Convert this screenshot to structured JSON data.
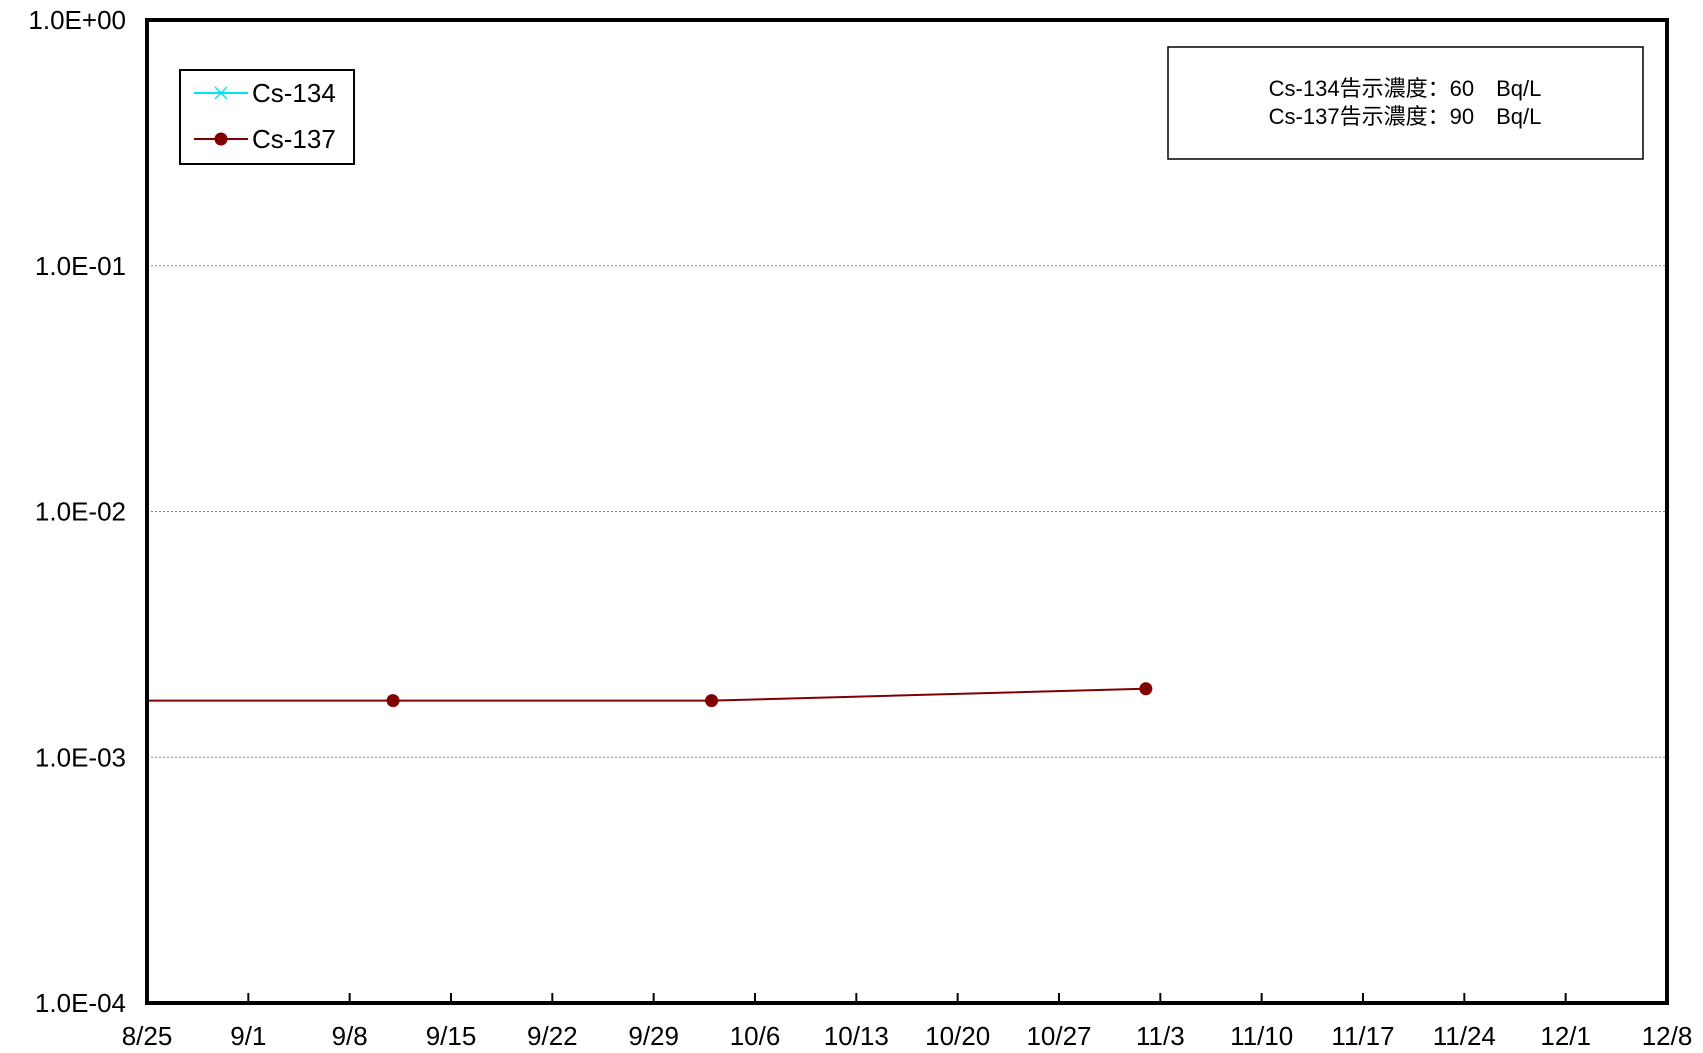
{
  "chart_data": {
    "type": "line",
    "title": "",
    "xlabel": "",
    "ylabel": "",
    "x_scale": "date",
    "y_scale": "log",
    "xlim": [
      "8/25",
      "12/8"
    ],
    "ylim": [
      0.0001,
      1
    ],
    "x_ticks": [
      "8/25",
      "9/1",
      "9/8",
      "9/15",
      "9/22",
      "9/29",
      "10/6",
      "10/13",
      "10/20",
      "10/27",
      "11/3",
      "11/10",
      "11/17",
      "11/24",
      "12/1",
      "12/8"
    ],
    "y_ticks": [
      "1.0E-04",
      "1.0E-03",
      "1.0E-02",
      "1.0E-01",
      "1.0E+00"
    ],
    "grid": "horizontal dotted",
    "legend_position": "top-left",
    "series": [
      {
        "name": "Cs-134",
        "color": "#00e5ee",
        "marker": "x",
        "points": []
      },
      {
        "name": "Cs-137",
        "color": "#800000",
        "marker": "circle",
        "points": [
          {
            "x": "8/23",
            "y": 0.0017
          },
          {
            "x": "9/11",
            "y": 0.0017
          },
          {
            "x": "10/3",
            "y": 0.0017
          },
          {
            "x": "11/2",
            "y": 0.0019
          }
        ]
      }
    ],
    "annotation": {
      "lines": [
        "Cs-134告示濃度：60　Bq/L",
        "Cs-137告示濃度：90　Bq/L"
      ]
    }
  }
}
